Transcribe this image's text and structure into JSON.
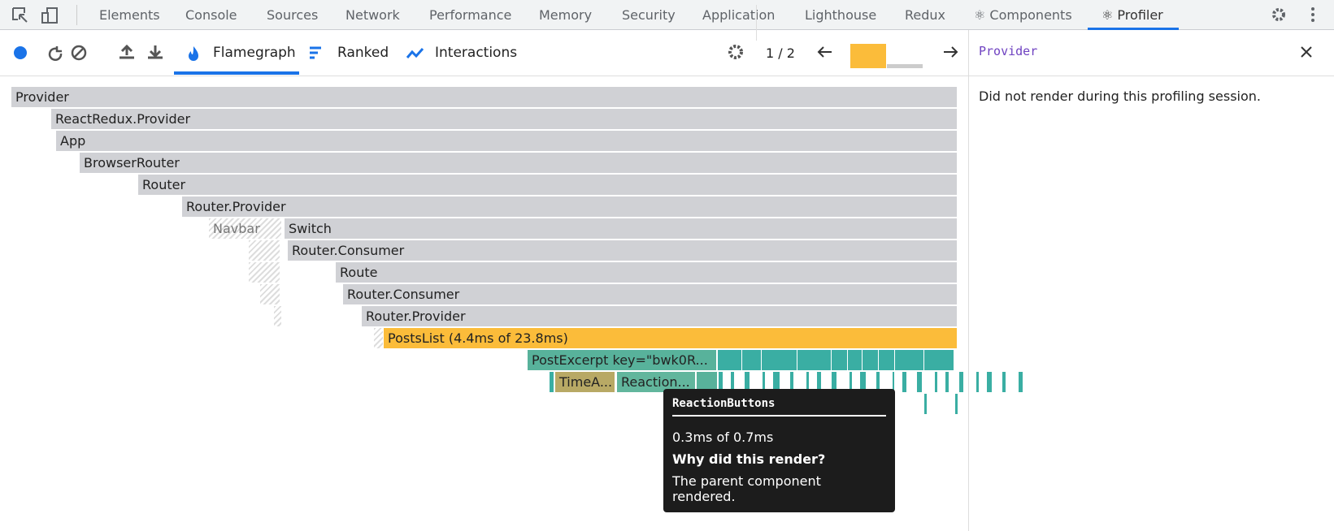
{
  "devtools_tabs": [
    "Elements",
    "Console",
    "Sources",
    "Network",
    "Performance",
    "Memory",
    "Security",
    "Application",
    "Lighthouse",
    "Redux",
    "⚛ Components",
    "⚛ Profiler"
  ],
  "profiler_tabs": [
    "Flamegraph",
    "Ranked",
    "Interactions"
  ],
  "commit_counter": "1 / 2",
  "flamegraph": {
    "nodes": [
      {
        "label": "Provider"
      },
      {
        "label": "ReactRedux.Provider"
      },
      {
        "label": "App"
      },
      {
        "label": "BrowserRouter"
      },
      {
        "label": "Router"
      },
      {
        "label": "Router.Provider"
      },
      {
        "label": "Navbar"
      },
      {
        "label": "Switch"
      },
      {
        "label": "Router.Consumer"
      },
      {
        "label": "Route"
      },
      {
        "label": "Router.Consumer"
      },
      {
        "label": "Router.Provider"
      },
      {
        "label": "PostsList (4.4ms of 23.8ms)"
      },
      {
        "label": "PostExcerpt key=\"bwk0R..."
      },
      {
        "label": "TimeA..."
      },
      {
        "label": "Reaction..."
      }
    ]
  },
  "tooltip": {
    "title": "ReactionButtons",
    "duration": "0.3ms of 0.7ms",
    "heading": "Why did this render?",
    "reason": "The parent component rendered."
  },
  "side_panel": {
    "title": "Provider",
    "message": "Did not render during this profiling session."
  }
}
